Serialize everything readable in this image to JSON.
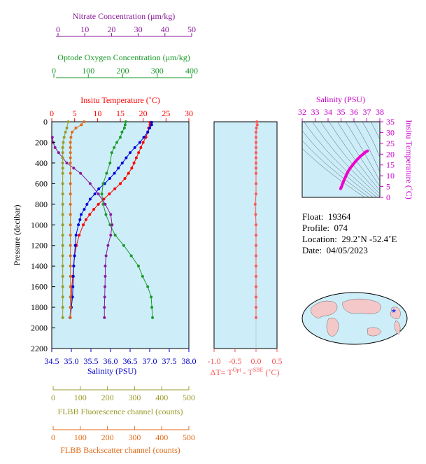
{
  "axes": {
    "nitrate": {
      "label": "Nitrate Concentration (μm/kg)",
      "ticks": [
        "0",
        "10",
        "20",
        "30",
        "40",
        "50"
      ],
      "range": [
        0,
        50
      ],
      "color": "#8b1a9b"
    },
    "oxygen": {
      "label": "Optode Oxygen Concentration (μm/kg)",
      "ticks": [
        "0",
        "100",
        "200",
        "300",
        "400"
      ],
      "range": [
        0,
        400
      ],
      "color": "#1a9a2a"
    },
    "temperature": {
      "label": "Insitu Temperature (˚C)",
      "ticks": [
        "0",
        "5",
        "10",
        "15",
        "20",
        "25",
        "30"
      ],
      "range": [
        0,
        30
      ],
      "color": "#ff0000"
    },
    "pressure": {
      "label": "Pressure (decibar)",
      "ticks": [
        "0",
        "200",
        "400",
        "600",
        "800",
        "1000",
        "1200",
        "1400",
        "1600",
        "1800",
        "2000",
        "2200"
      ],
      "range": [
        0,
        2200
      ]
    },
    "salinity": {
      "label": "Salinity (PSU)",
      "ticks": [
        "34.5",
        "35.0",
        "35.5",
        "36.0",
        "36.5",
        "37.0",
        "37.5",
        "38.0"
      ],
      "range": [
        34.5,
        38.0
      ],
      "color": "#0000cc"
    },
    "fluorescence": {
      "label": "FLBB Fluorescence channel (counts)",
      "ticks": [
        "0",
        "100",
        "200",
        "300",
        "400",
        "500"
      ],
      "range": [
        0,
        500
      ],
      "color": "#9a9a2a"
    },
    "backscatter": {
      "label": "FLBB Backscatter channel (counts)",
      "ticks": [
        "0",
        "100",
        "200",
        "300",
        "400",
        "500"
      ],
      "range": [
        0,
        500
      ],
      "color": "#e06a1a"
    },
    "delta_t": {
      "label": "ΔT= T",
      "sup1": "Opt",
      "mid": " - T",
      "sup2": "SBE",
      "unit": " (˚C)",
      "ticks": [
        "-1.0",
        "-0.5",
        "0.0",
        "0.5"
      ],
      "range": [
        -1.0,
        0.5
      ],
      "color": "#ff5555"
    },
    "ts_salinity": {
      "label": "Salinity (PSU)",
      "ticks": [
        "32",
        "33",
        "34",
        "35",
        "36",
        "37",
        "38"
      ],
      "range": [
        32,
        38
      ],
      "color": "#cc00cc"
    },
    "ts_temperature": {
      "label": "Insitu Temperature (˚C)",
      "ticks": [
        "0",
        "5",
        "10",
        "15",
        "20",
        "25",
        "30",
        "35"
      ],
      "range": [
        0,
        35
      ],
      "color": "#cc00cc"
    }
  },
  "info": {
    "float_label": "Float:",
    "float": "19364",
    "profile_label": "Profile:",
    "profile": "074",
    "location_label": "Location:",
    "location": "29.2˚N  -52.4˚E",
    "date_label": "Date:",
    "date": "04/05/2023"
  },
  "colors": {
    "panel_bg": "#cdeef8",
    "ts_grid": "#555577",
    "ts_trace": "#ee00cc",
    "map_land": "#f4c8c8",
    "map_star": "#1a3cff"
  },
  "chart_data": [
    {
      "type": "line",
      "title": "",
      "xlabel": "Insitu Temperature (˚C)",
      "ylabel": "Pressure (decibar)",
      "ylim": [
        0,
        2200
      ],
      "series": [
        {
          "name": "Insitu Temperature (˚C)",
          "axis": "temperature",
          "pressure": [
            5,
            30,
            60,
            100,
            150,
            200,
            250,
            300,
            350,
            400,
            450,
            500,
            550,
            600,
            650,
            700,
            750,
            800,
            850,
            900,
            950,
            1000,
            1100,
            1200,
            1300,
            1400,
            1500,
            1600,
            1700,
            1800,
            1900
          ],
          "values": [
            21.5,
            21.5,
            21.2,
            21.0,
            20.6,
            20.0,
            19.5,
            19.0,
            18.5,
            18.0,
            17.5,
            16.8,
            16.0,
            15.0,
            13.8,
            12.6,
            11.4,
            10.2,
            9.2,
            8.3,
            7.5,
            6.9,
            6.0,
            5.4,
            5.0,
            4.8,
            4.6,
            4.4,
            4.3,
            4.1,
            4.0
          ]
        },
        {
          "name": "Salinity (PSU)",
          "axis": "salinity",
          "pressure": [
            5,
            30,
            60,
            100,
            150,
            200,
            250,
            300,
            350,
            400,
            450,
            500,
            550,
            600,
            650,
            700,
            750,
            800,
            850,
            900,
            950,
            1000,
            1100,
            1200,
            1300,
            1400,
            1500,
            1600,
            1700,
            1800,
            1900
          ],
          "values": [
            37.05,
            37.05,
            37.0,
            36.95,
            36.85,
            36.75,
            36.62,
            36.5,
            36.4,
            36.3,
            36.2,
            36.1,
            35.98,
            35.85,
            35.7,
            35.6,
            35.48,
            35.4,
            35.33,
            35.25,
            35.22,
            35.18,
            35.12,
            35.1,
            35.08,
            35.06,
            35.05,
            35.04,
            35.03,
            35.0,
            34.97
          ]
        },
        {
          "name": "Optode Oxygen Concentration (μm/kg)",
          "axis": "oxygen",
          "pressure": [
            0,
            30,
            60,
            100,
            150,
            200,
            250,
            300,
            400,
            500,
            600,
            700,
            800,
            900,
            1000,
            1100,
            1200,
            1300,
            1400,
            1500,
            1600,
            1700,
            1800,
            1900
          ],
          "values": [
            216,
            214,
            212,
            205,
            200,
            190,
            182,
            175,
            170,
            160,
            150,
            146,
            150,
            158,
            170,
            185,
            210,
            232,
            253,
            265,
            280,
            290,
            292,
            294
          ]
        },
        {
          "name": "Nitrate Concentration (μm/kg)",
          "axis": "nitrate",
          "pressure": [
            150,
            200,
            250,
            300,
            350,
            400,
            450,
            500,
            600,
            700,
            800,
            900,
            1000,
            1100,
            1200,
            1300,
            1400,
            1500,
            1600,
            1700,
            1800,
            1900
          ],
          "values": [
            0.2,
            0.5,
            1.2,
            2.5,
            4.0,
            5.5,
            8.0,
            10.5,
            14.0,
            17.0,
            19.5,
            21.5,
            22.0,
            21.5,
            20.5,
            19.8,
            19.5,
            19.5,
            19.4,
            19.3,
            19.2,
            19.2
          ]
        },
        {
          "name": "FLBB Fluorescence channel (counts)",
          "axis": "fluorescence",
          "pressure": [
            0,
            60,
            100,
            150,
            200,
            250,
            300,
            350,
            400,
            450,
            500,
            600,
            700,
            800,
            900,
            1000,
            1100,
            1200,
            1300,
            1400,
            1500,
            1600,
            1700,
            1800,
            1900
          ],
          "values": [
            60,
            55,
            50,
            45,
            42,
            40,
            40,
            40,
            40,
            40,
            40,
            40,
            40,
            40,
            40,
            40,
            40,
            40,
            40,
            40,
            40,
            40,
            40,
            40,
            40
          ]
        },
        {
          "name": "FLBB Backscatter channel (counts)",
          "axis": "backscatter",
          "pressure": [
            0,
            30,
            60,
            100,
            150,
            200,
            250,
            300,
            350,
            400,
            500,
            600,
            700,
            800,
            900,
            1000,
            1100,
            1200,
            1300,
            1400,
            1500,
            1600,
            1700,
            1800,
            1900
          ],
          "values": [
            118,
            108,
            88,
            74,
            70,
            68,
            68,
            68,
            68,
            68,
            68,
            68,
            68,
            68,
            68,
            68,
            68,
            68,
            68,
            68,
            68,
            68,
            68,
            68,
            68
          ]
        }
      ]
    },
    {
      "type": "scatter",
      "title": "",
      "xlabel": "ΔT= TOpt - TSBE (˚C)",
      "ylabel": "Pressure (decibar)",
      "xlim": [
        -1.0,
        0.5
      ],
      "ylim": [
        0,
        2200
      ],
      "series": [
        {
          "name": "ΔT",
          "pressure": [
            0,
            30,
            60,
            100,
            150,
            200,
            250,
            300,
            350,
            400,
            450,
            500,
            600,
            700,
            800,
            900,
            1000,
            1100,
            1200,
            1300,
            1400,
            1500,
            1600,
            1700,
            1800,
            1900
          ],
          "values": [
            0.02,
            0.03,
            0.01,
            0.0,
            0.0,
            0.0,
            0.0,
            0.0,
            0.0,
            0.0,
            0.0,
            0.0,
            0.0,
            0.0,
            -0.02,
            -0.01,
            0.0,
            0.0,
            0.0,
            0.0,
            0.0,
            0.0,
            0.0,
            0.0,
            0.0,
            0.0
          ]
        }
      ]
    },
    {
      "type": "line",
      "title": "",
      "xlabel": "Salinity (PSU)",
      "ylabel": "Insitu Temperature (˚C)",
      "xlim": [
        32,
        38
      ],
      "ylim": [
        0,
        35
      ],
      "series": [
        {
          "name": "T-S",
          "salinity": [
            34.97,
            35.0,
            35.05,
            35.1,
            35.2,
            35.35,
            35.5,
            35.7,
            35.9,
            36.1,
            36.3,
            36.5,
            36.7,
            36.9,
            37.05
          ],
          "temperature": [
            4.0,
            4.5,
            5.0,
            6.0,
            7.5,
            9.5,
            11.5,
            13.5,
            15.0,
            16.5,
            17.8,
            19.0,
            20.0,
            21.0,
            21.5
          ]
        }
      ]
    }
  ]
}
